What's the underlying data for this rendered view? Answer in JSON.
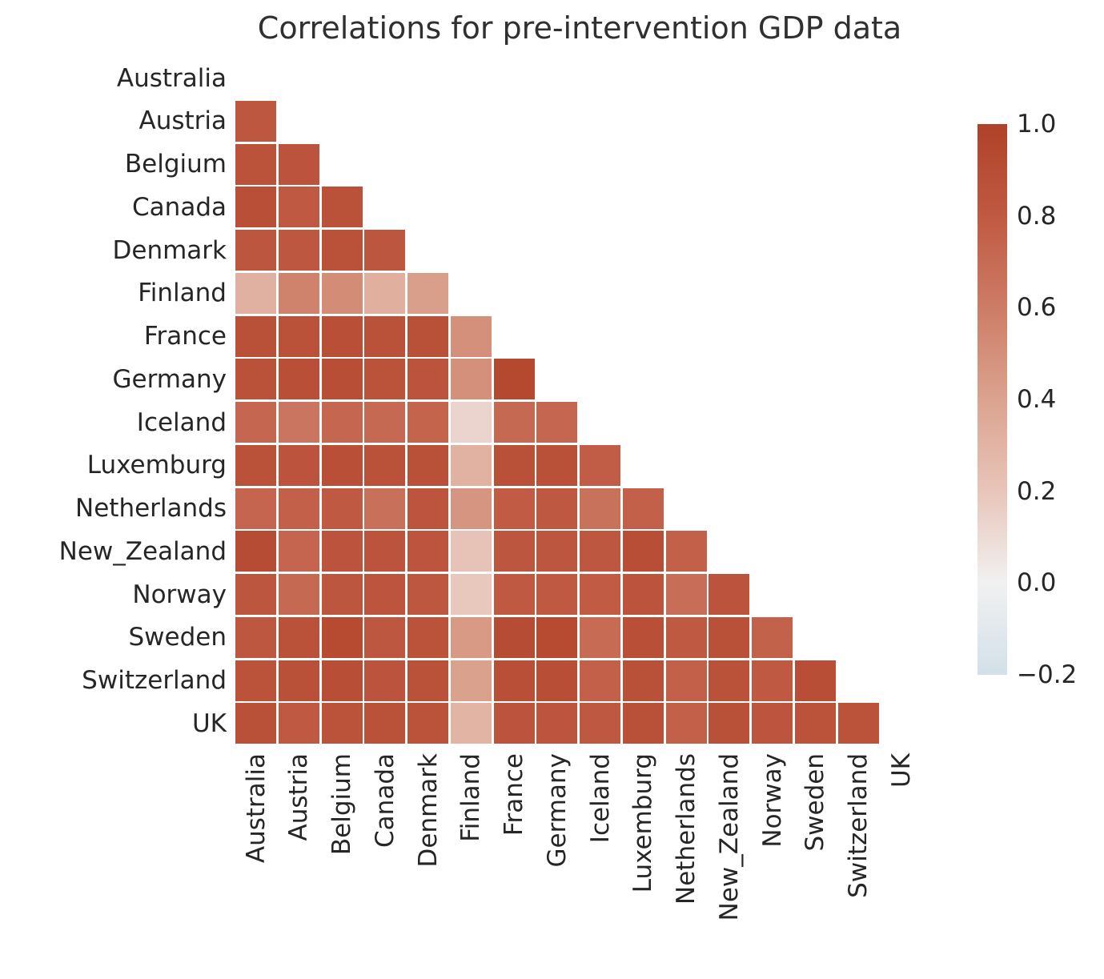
{
  "title": "Correlations for pre-intervention GDP data",
  "chart_data": {
    "type": "heatmap",
    "title": "Correlations for pre-intervention GDP data",
    "categories": [
      "Australia",
      "Austria",
      "Belgium",
      "Canada",
      "Denmark",
      "Finland",
      "France",
      "Germany",
      "Iceland",
      "Luxemburg",
      "Netherlands",
      "New_Zealand",
      "Norway",
      "Sweden",
      "Switzerland",
      "UK"
    ],
    "mask": "upper-triangle-including-diagonal",
    "matrix_lower": [
      [],
      [
        0.82
      ],
      [
        0.86,
        0.85
      ],
      [
        0.89,
        0.8,
        0.87
      ],
      [
        0.83,
        0.82,
        0.87,
        0.83
      ],
      [
        0.32,
        0.57,
        0.52,
        0.33,
        0.42
      ],
      [
        0.88,
        0.87,
        0.89,
        0.87,
        0.88,
        0.5
      ],
      [
        0.87,
        0.89,
        0.9,
        0.86,
        0.85,
        0.5,
        0.94
      ],
      [
        0.72,
        0.64,
        0.72,
        0.71,
        0.74,
        0.13,
        0.71,
        0.72
      ],
      [
        0.87,
        0.85,
        0.89,
        0.87,
        0.88,
        0.31,
        0.88,
        0.88,
        0.78
      ],
      [
        0.73,
        0.76,
        0.8,
        0.67,
        0.84,
        0.47,
        0.79,
        0.81,
        0.66,
        0.76
      ],
      [
        0.91,
        0.73,
        0.85,
        0.85,
        0.84,
        0.21,
        0.83,
        0.83,
        0.82,
        0.9,
        0.76
      ],
      [
        0.83,
        0.71,
        0.83,
        0.84,
        0.82,
        0.19,
        0.8,
        0.8,
        0.79,
        0.85,
        0.68,
        0.85
      ],
      [
        0.82,
        0.87,
        0.92,
        0.82,
        0.86,
        0.45,
        0.91,
        0.92,
        0.7,
        0.89,
        0.8,
        0.88,
        0.75
      ],
      [
        0.86,
        0.88,
        0.9,
        0.85,
        0.87,
        0.41,
        0.89,
        0.9,
        0.76,
        0.88,
        0.76,
        0.87,
        0.8,
        0.9
      ],
      [
        0.88,
        0.8,
        0.86,
        0.87,
        0.86,
        0.3,
        0.85,
        0.84,
        0.81,
        0.88,
        0.76,
        0.88,
        0.84,
        0.86,
        0.86
      ]
    ],
    "colormap_stops": [
      {
        "value": -0.2,
        "color": "#d3e0e9"
      },
      {
        "value": 0.0,
        "color": "#f1f1f1"
      },
      {
        "value": 0.2,
        "color": "#e8c5b9"
      },
      {
        "value": 0.4,
        "color": "#dba38f"
      },
      {
        "value": 0.6,
        "color": "#cd7c66"
      },
      {
        "value": 0.8,
        "color": "#c05942"
      },
      {
        "value": 1.0,
        "color": "#af4228"
      }
    ],
    "colorbar": {
      "min": -0.2,
      "max": 1.0,
      "tick_values": [
        1.0,
        0.8,
        0.6,
        0.4,
        0.2,
        0.0,
        -0.2
      ],
      "tick_labels": [
        "1.0",
        "0.8",
        "0.6",
        "0.4",
        "0.2",
        "0.0",
        "−0.2"
      ]
    },
    "cell_gap_color": "#ffffff",
    "legend_position": "right"
  }
}
